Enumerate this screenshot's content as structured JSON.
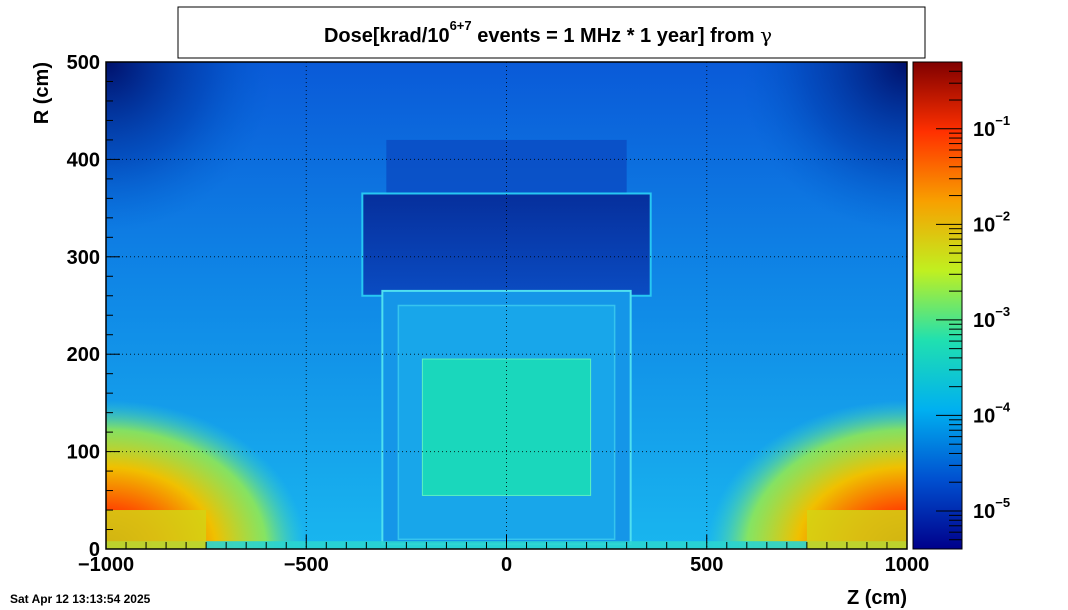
{
  "chart_data": {
    "type": "heatmap",
    "title": {
      "prefix": "Dose[krad/10",
      "superscript": "6+7",
      "suffix": " events = 1 MHz * 1 year] from ",
      "symbol": "γ"
    },
    "xlabel": "Z (cm)",
    "ylabel": "R (cm)",
    "xlim": [
      -1000,
      1000
    ],
    "ylim": [
      0,
      500
    ],
    "xticks": [
      {
        "value": -1000,
        "label": "−1000"
      },
      {
        "value": -500,
        "label": "−500"
      },
      {
        "value": 0,
        "label": "0"
      },
      {
        "value": 500,
        "label": "500"
      },
      {
        "value": 1000,
        "label": "1000"
      }
    ],
    "yticks": [
      {
        "value": 0,
        "label": "0"
      },
      {
        "value": 100,
        "label": "100"
      },
      {
        "value": 200,
        "label": "200"
      },
      {
        "value": 300,
        "label": "300"
      },
      {
        "value": 400,
        "label": "400"
      },
      {
        "value": 500,
        "label": "500"
      }
    ],
    "grid": true,
    "colorbar": {
      "scale": "log",
      "range": [
        4e-06,
        0.5
      ],
      "ticks": [
        {
          "value": 1e-05,
          "base": "10",
          "exp": "−5"
        },
        {
          "value": 0.0001,
          "base": "10",
          "exp": "−4"
        },
        {
          "value": 0.001,
          "base": "10",
          "exp": "−3"
        },
        {
          "value": 0.01,
          "base": "10",
          "exp": "−2"
        },
        {
          "value": 0.1,
          "base": "10",
          "exp": "−1"
        }
      ],
      "colors": [
        "#00008b",
        "#0050d0",
        "#00b0f0",
        "#20e0b0",
        "#c0f020",
        "#f8a000",
        "#ff3000",
        "#800000"
      ]
    },
    "regions": [
      {
        "name": "inner-calorimeter-block",
        "z": [
          -210,
          210
        ],
        "r": [
          55,
          195
        ],
        "level": 0.00045
      },
      {
        "name": "magnet-yoke-upper",
        "z": [
          -360,
          360
        ],
        "r": [
          300,
          365
        ],
        "level": 1.5e-05
      },
      {
        "name": "upper-cavern",
        "z": [
          -300,
          300
        ],
        "r": [
          365,
          420
        ],
        "level": 3e-05
      },
      {
        "name": "forward-hotspot-left",
        "z": [
          -1000,
          -880
        ],
        "r": [
          0,
          90
        ],
        "level": 0.03
      },
      {
        "name": "forward-hotspot-right",
        "z": [
          880,
          1000
        ],
        "r": [
          0,
          90
        ],
        "level": 0.03
      },
      {
        "name": "beamline-left",
        "z": [
          -1000,
          -750
        ],
        "r": [
          0,
          40
        ],
        "level": 0.006
      },
      {
        "name": "beamline-right",
        "z": [
          750,
          1000
        ],
        "r": [
          0,
          40
        ],
        "level": 0.006
      },
      {
        "name": "corner-dark-left",
        "z": [
          -1000,
          -880
        ],
        "r": [
          380,
          500
        ],
        "level": 6e-06
      },
      {
        "name": "corner-dark-right",
        "z": [
          880,
          1000
        ],
        "r": [
          380,
          500
        ],
        "level": 6e-06
      }
    ]
  },
  "footer": {
    "datestamp": "Sat Apr 12 13:13:54 2025"
  }
}
